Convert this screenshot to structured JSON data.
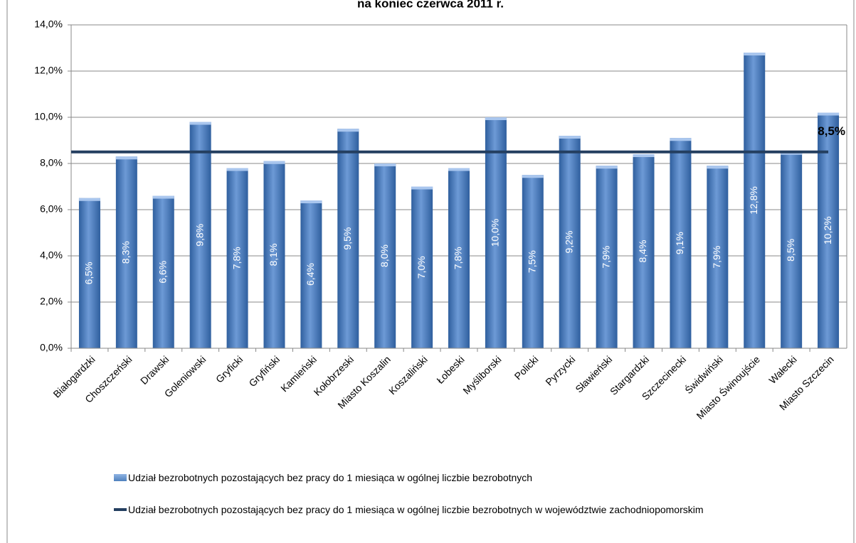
{
  "chart_data": {
    "type": "bar",
    "title": "na koniec czerwca 2011 r.",
    "categories": [
      "Białogardzki",
      "Choszczeński",
      "Drawski",
      "Goleniowski",
      "Gryficki",
      "Gryfiński",
      "Kamieński",
      "Kołobrzeski",
      "Miasto Koszalin",
      "Koszaliński",
      "Łobeski",
      "Myśliborski",
      "Policki",
      "Pyrzycki",
      "Sławieński",
      "Stargardzki",
      "Szczecinecki",
      "Świdwiński",
      "Miasto Świnoujście",
      "Wałecki",
      "Miasto Szczecin"
    ],
    "series": [
      {
        "name": "Udział bezrobotnych pozostających  bez pracy do 1 miesiąca w ogólnej liczbie bezrobotnych",
        "color": "#4f81bd",
        "values": [
          6.5,
          8.3,
          6.6,
          9.8,
          7.8,
          8.1,
          6.4,
          9.5,
          8.0,
          7.0,
          7.8,
          10.0,
          7.5,
          9.2,
          7.9,
          8.4,
          9.1,
          7.9,
          12.8,
          8.5,
          10.2
        ],
        "value_labels": [
          "6,5%",
          "8,3%",
          "6,6%",
          "9,8%",
          "7,8%",
          "8,1%",
          "6,4%",
          "9,5%",
          "8,0%",
          "7,0%",
          "7,8%",
          "10,0%",
          "7,5%",
          "9,2%",
          "7,9%",
          "8,4%",
          "9,1%",
          "7,9%",
          "12,8%",
          "8,5%",
          "10,2%"
        ]
      }
    ],
    "reference_line": {
      "name": "Udział bezrobotnych pozostających  bez pracy do 1 miesiąca w ogólnej liczbie bezrobotnych w województwie zachodniopomorskim",
      "color": "#243f60",
      "value": 8.5,
      "value_label": "8,5%"
    },
    "ylim": [
      0,
      14
    ],
    "yticks": [
      {
        "value": 0,
        "label": "0,0%"
      },
      {
        "value": 2,
        "label": "2,0%"
      },
      {
        "value": 4,
        "label": "4,0%"
      },
      {
        "value": 6,
        "label": "6,0%"
      },
      {
        "value": 8,
        "label": "8,0%"
      },
      {
        "value": 10,
        "label": "10,0%"
      },
      {
        "value": 12,
        "label": "12,0%"
      },
      {
        "value": 14,
        "label": "14,0%"
      }
    ],
    "grid": true
  }
}
